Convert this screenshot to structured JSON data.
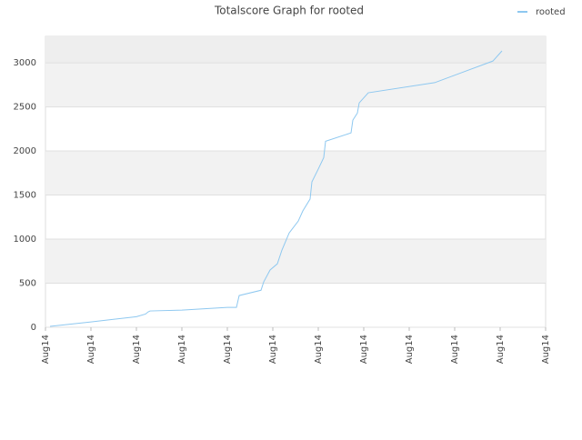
{
  "chart_data": {
    "type": "line",
    "title": "Totalscore Graph for rooted",
    "x": [
      0.1,
      1.0,
      2.0,
      2.2,
      2.26,
      2.3,
      3.0,
      4.0,
      4.2,
      4.26,
      4.74,
      4.8,
      4.94,
      5.1,
      5.2,
      5.36,
      5.56,
      5.66,
      5.82,
      5.86,
      6.0,
      6.12,
      6.16,
      6.72,
      6.76,
      6.86,
      6.9,
      7.1,
      8.56,
      9.84,
      10.04
    ],
    "series": [
      {
        "name": "rooted",
        "color": "#8ec8f0",
        "values": [
          10,
          60,
          120,
          150,
          175,
          185,
          195,
          225,
          225,
          360,
          420,
          515,
          650,
          720,
          875,
          1070,
          1205,
          1320,
          1455,
          1650,
          1795,
          1925,
          2110,
          2205,
          2350,
          2430,
          2545,
          2660,
          2775,
          3020,
          3135
        ]
      }
    ],
    "xlim": [
      0,
      11
    ],
    "xticks": [
      {
        "value": 0,
        "label": "Aug14"
      },
      {
        "value": 1,
        "label": "Aug14"
      },
      {
        "value": 2,
        "label": "Aug14"
      },
      {
        "value": 3,
        "label": "Aug14"
      },
      {
        "value": 4,
        "label": "Aug14"
      },
      {
        "value": 5,
        "label": "Aug14"
      },
      {
        "value": 6,
        "label": "Aug14"
      },
      {
        "value": 7,
        "label": "Aug14"
      },
      {
        "value": 8,
        "label": "Aug14"
      },
      {
        "value": 9,
        "label": "Aug14"
      },
      {
        "value": 10,
        "label": "Aug14"
      },
      {
        "value": 11,
        "label": "Aug14"
      }
    ],
    "ylim": [
      0,
      3300
    ],
    "yticks": [
      0,
      500,
      1000,
      1500,
      2000,
      2500,
      3000
    ],
    "grid": true,
    "legend": "top-right"
  }
}
